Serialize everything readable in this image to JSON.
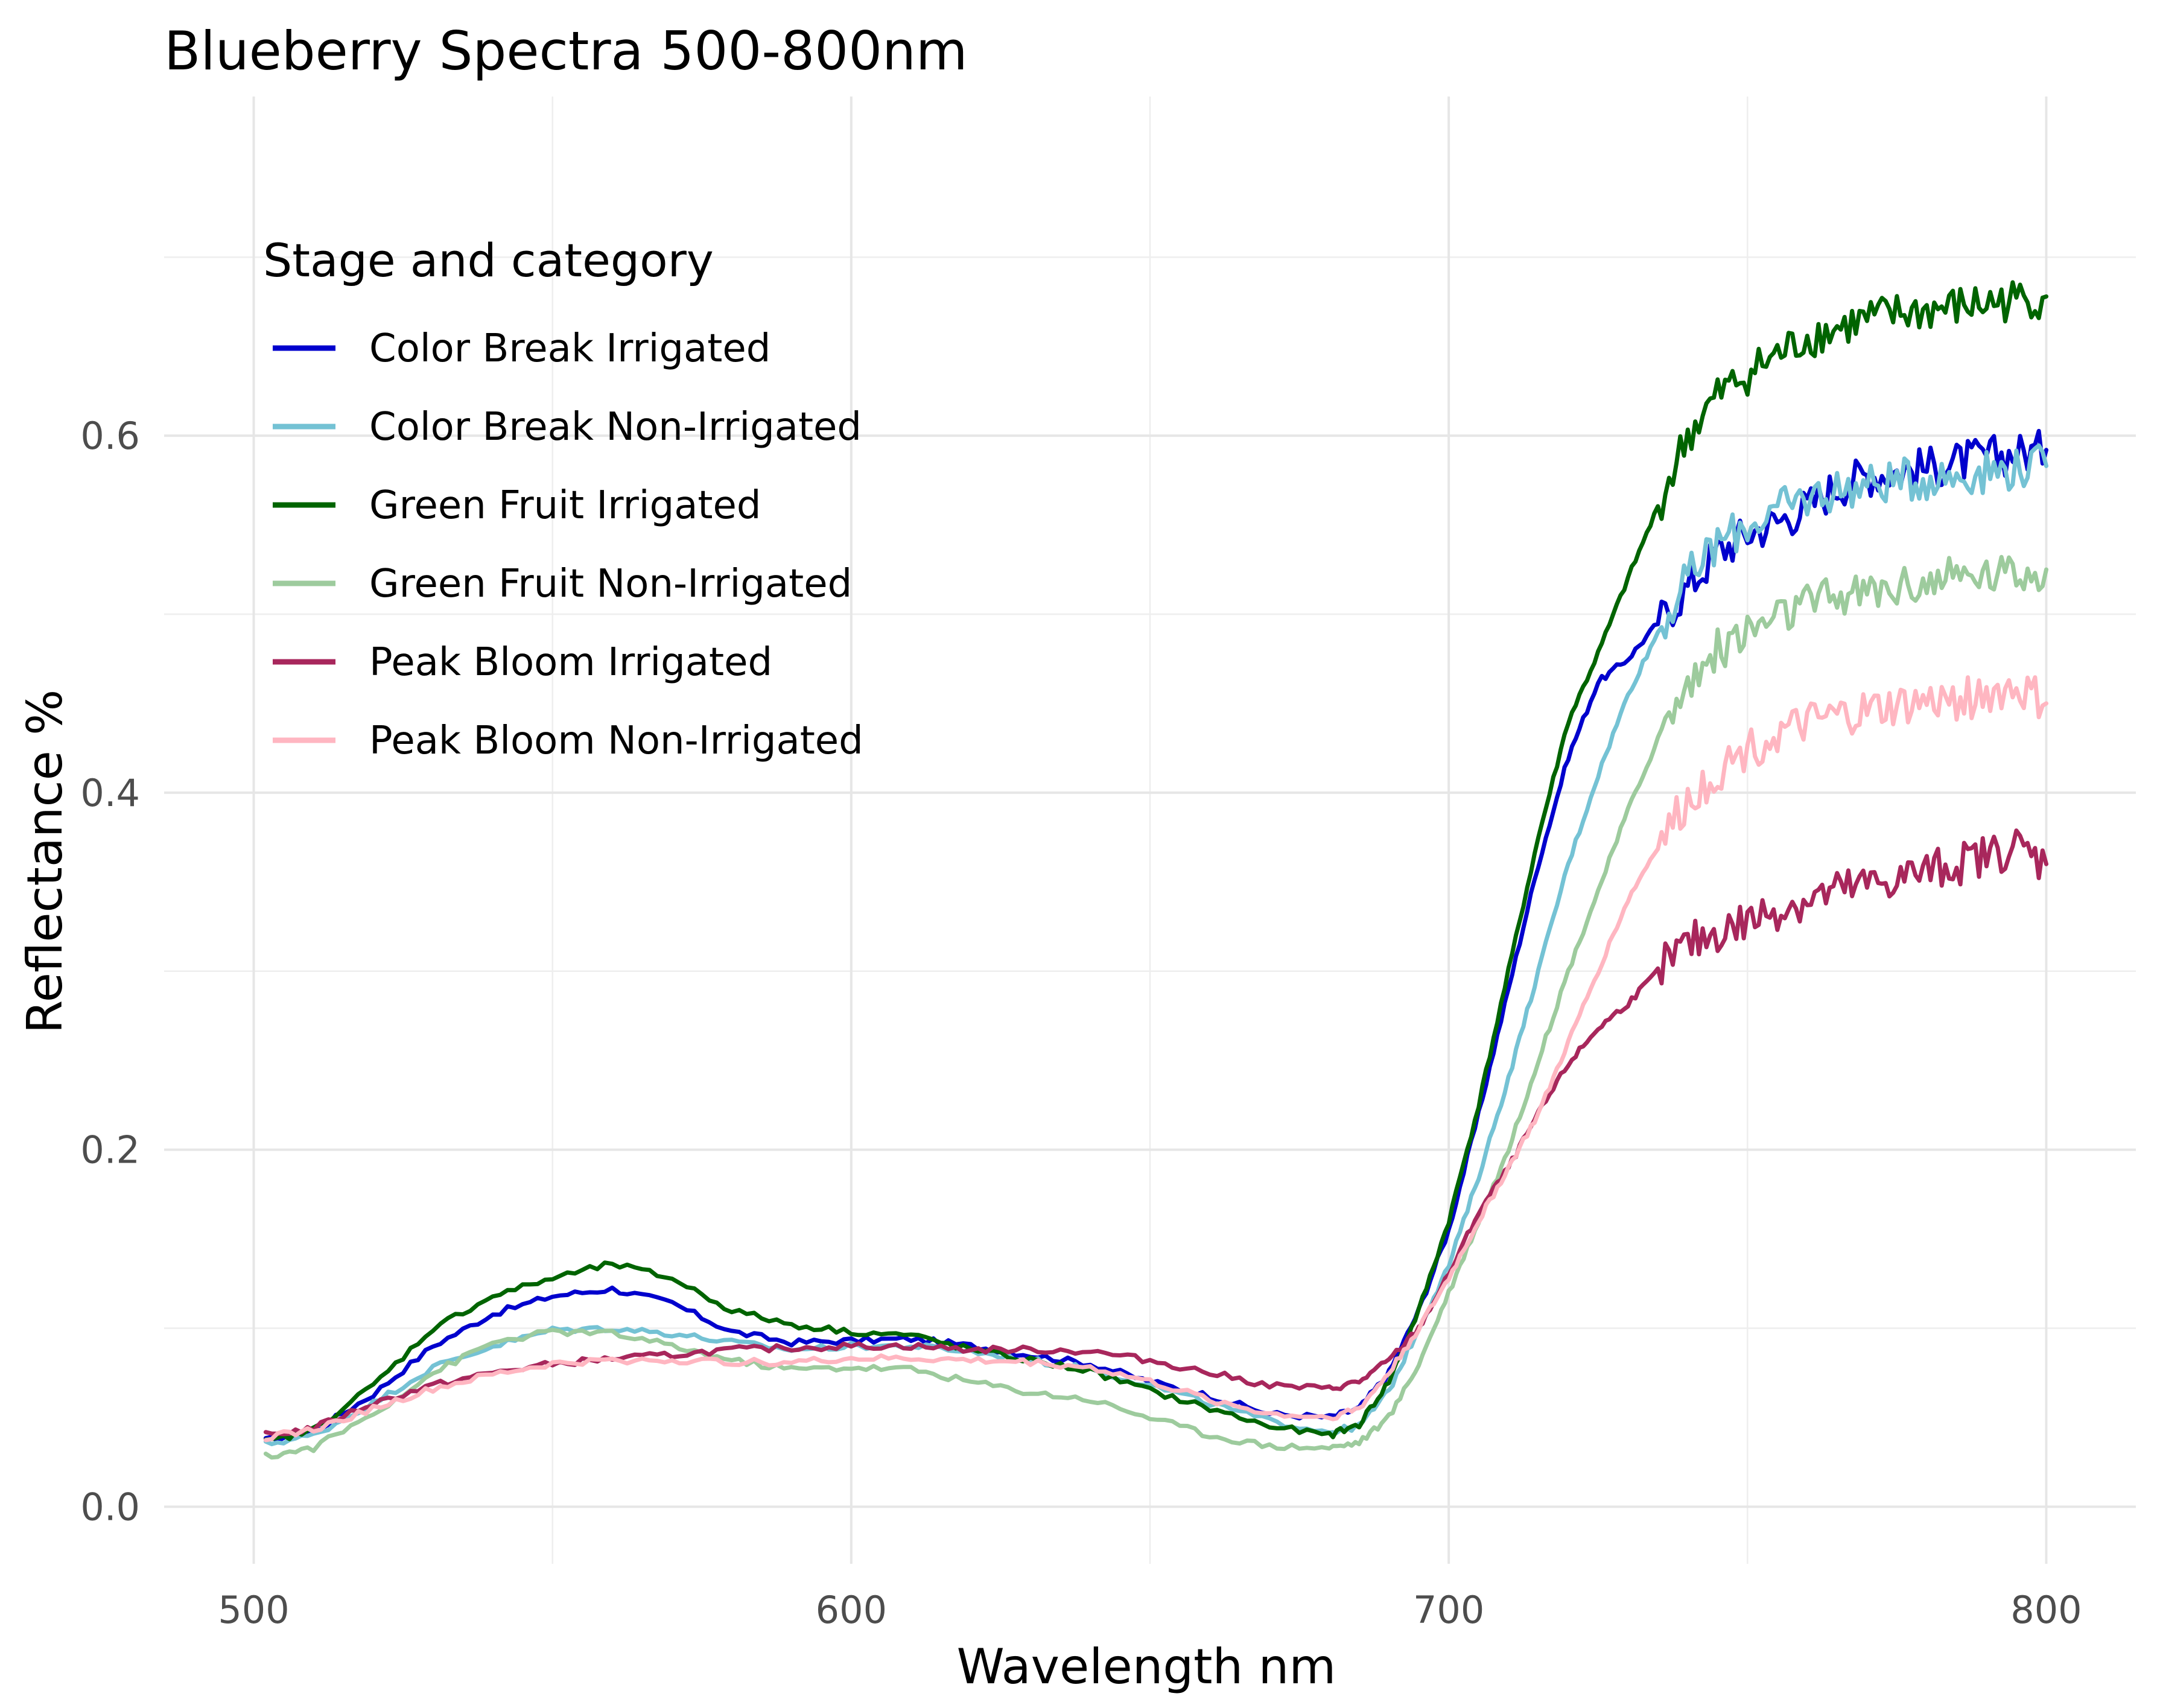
{
  "chart_data": {
    "type": "line",
    "title": "Blueberry Spectra 500-800nm",
    "xlabel": "Wavelength nm",
    "ylabel": "Reflectance %",
    "xlim": [
      485,
      815
    ],
    "ylim": [
      -0.032,
      0.79
    ],
    "x_ticks": [
      500,
      600,
      700,
      800
    ],
    "x_tick_labels": [
      "500",
      "600",
      "700",
      "800"
    ],
    "y_ticks": [
      0.0,
      0.2,
      0.4,
      0.6
    ],
    "y_tick_labels": [
      "0.0",
      "0.2",
      "0.4",
      "0.6"
    ],
    "grid": true,
    "legend": {
      "title": "Stage and category",
      "position": "top-left"
    },
    "series": [
      {
        "name": "Color Break Irrigated",
        "color": "#0000CD",
        "points": [
          [
            502,
            0.037
          ],
          [
            510,
            0.042
          ],
          [
            520,
            0.063
          ],
          [
            530,
            0.09
          ],
          [
            540,
            0.108
          ],
          [
            550,
            0.118
          ],
          [
            560,
            0.122
          ],
          [
            570,
            0.114
          ],
          [
            580,
            0.098
          ],
          [
            590,
            0.092
          ],
          [
            600,
            0.093
          ],
          [
            610,
            0.094
          ],
          [
            620,
            0.09
          ],
          [
            630,
            0.085
          ],
          [
            640,
            0.08
          ],
          [
            650,
            0.07
          ],
          [
            660,
            0.062
          ],
          [
            670,
            0.052
          ],
          [
            680,
            0.05
          ],
          [
            685,
            0.055
          ],
          [
            690,
            0.075
          ],
          [
            695,
            0.11
          ],
          [
            700,
            0.155
          ],
          [
            705,
            0.22
          ],
          [
            710,
            0.29
          ],
          [
            715,
            0.36
          ],
          [
            720,
            0.42
          ],
          [
            725,
            0.462
          ],
          [
            730,
            0.475
          ],
          [
            735,
            0.495
          ],
          [
            740,
            0.515
          ],
          [
            745,
            0.535
          ],
          [
            750,
            0.545
          ],
          [
            755,
            0.552
          ],
          [
            760,
            0.56
          ],
          [
            765,
            0.572
          ],
          [
            770,
            0.578
          ],
          [
            775,
            0.58
          ],
          [
            780,
            0.582
          ],
          [
            785,
            0.585
          ],
          [
            790,
            0.588
          ],
          [
            795,
            0.59
          ],
          [
            800,
            0.592
          ]
        ]
      },
      {
        "name": "Color Break Non-Irrigated",
        "color": "#74C2D4",
        "points": [
          [
            502,
            0.035
          ],
          [
            510,
            0.04
          ],
          [
            520,
            0.058
          ],
          [
            530,
            0.078
          ],
          [
            540,
            0.09
          ],
          [
            550,
            0.099
          ],
          [
            560,
            0.1
          ],
          [
            570,
            0.097
          ],
          [
            580,
            0.092
          ],
          [
            590,
            0.088
          ],
          [
            600,
            0.09
          ],
          [
            610,
            0.09
          ],
          [
            620,
            0.087
          ],
          [
            630,
            0.082
          ],
          [
            640,
            0.077
          ],
          [
            650,
            0.068
          ],
          [
            660,
            0.058
          ],
          [
            670,
            0.048
          ],
          [
            680,
            0.042
          ],
          [
            685,
            0.045
          ],
          [
            690,
            0.065
          ],
          [
            695,
            0.1
          ],
          [
            700,
            0.135
          ],
          [
            705,
            0.185
          ],
          [
            710,
            0.24
          ],
          [
            715,
            0.3
          ],
          [
            720,
            0.36
          ],
          [
            725,
            0.41
          ],
          [
            730,
            0.455
          ],
          [
            735,
            0.49
          ],
          [
            740,
            0.52
          ],
          [
            745,
            0.54
          ],
          [
            750,
            0.55
          ],
          [
            755,
            0.558
          ],
          [
            760,
            0.565
          ],
          [
            765,
            0.57
          ],
          [
            770,
            0.572
          ],
          [
            775,
            0.575
          ],
          [
            780,
            0.576
          ],
          [
            785,
            0.578
          ],
          [
            790,
            0.58
          ],
          [
            795,
            0.582
          ],
          [
            800,
            0.583
          ]
        ]
      },
      {
        "name": "Green Fruit Irrigated",
        "color": "#006400",
        "points": [
          [
            502,
            0.036
          ],
          [
            510,
            0.043
          ],
          [
            520,
            0.068
          ],
          [
            530,
            0.1
          ],
          [
            540,
            0.118
          ],
          [
            550,
            0.128
          ],
          [
            560,
            0.136
          ],
          [
            570,
            0.128
          ],
          [
            580,
            0.11
          ],
          [
            590,
            0.102
          ],
          [
            600,
            0.098
          ],
          [
            610,
            0.096
          ],
          [
            620,
            0.088
          ],
          [
            630,
            0.082
          ],
          [
            640,
            0.076
          ],
          [
            650,
            0.065
          ],
          [
            660,
            0.055
          ],
          [
            670,
            0.045
          ],
          [
            680,
            0.04
          ],
          [
            685,
            0.046
          ],
          [
            690,
            0.07
          ],
          [
            695,
            0.11
          ],
          [
            700,
            0.16
          ],
          [
            705,
            0.225
          ],
          [
            710,
            0.3
          ],
          [
            715,
            0.375
          ],
          [
            720,
            0.44
          ],
          [
            725,
            0.478
          ],
          [
            730,
            0.52
          ],
          [
            735,
            0.56
          ],
          [
            740,
            0.6
          ],
          [
            745,
            0.622
          ],
          [
            750,
            0.635
          ],
          [
            755,
            0.645
          ],
          [
            760,
            0.655
          ],
          [
            765,
            0.66
          ],
          [
            770,
            0.665
          ],
          [
            775,
            0.668
          ],
          [
            780,
            0.67
          ],
          [
            785,
            0.672
          ],
          [
            790,
            0.674
          ],
          [
            795,
            0.676
          ],
          [
            800,
            0.678
          ]
        ]
      },
      {
        "name": "Green Fruit Non-Irrigated",
        "color": "#9DCB9D",
        "points": [
          [
            502,
            0.028
          ],
          [
            510,
            0.033
          ],
          [
            520,
            0.052
          ],
          [
            530,
            0.075
          ],
          [
            540,
            0.092
          ],
          [
            550,
            0.098
          ],
          [
            560,
            0.097
          ],
          [
            570,
            0.09
          ],
          [
            580,
            0.082
          ],
          [
            590,
            0.077
          ],
          [
            600,
            0.078
          ],
          [
            610,
            0.077
          ],
          [
            620,
            0.07
          ],
          [
            630,
            0.064
          ],
          [
            640,
            0.06
          ],
          [
            650,
            0.05
          ],
          [
            660,
            0.04
          ],
          [
            670,
            0.034
          ],
          [
            680,
            0.033
          ],
          [
            685,
            0.036
          ],
          [
            690,
            0.05
          ],
          [
            695,
            0.08
          ],
          [
            700,
            0.12
          ],
          [
            705,
            0.16
          ],
          [
            710,
            0.2
          ],
          [
            715,
            0.25
          ],
          [
            720,
            0.3
          ],
          [
            725,
            0.345
          ],
          [
            730,
            0.39
          ],
          [
            735,
            0.43
          ],
          [
            740,
            0.46
          ],
          [
            745,
            0.48
          ],
          [
            750,
            0.49
          ],
          [
            755,
            0.498
          ],
          [
            760,
            0.505
          ],
          [
            765,
            0.51
          ],
          [
            770,
            0.512
          ],
          [
            775,
            0.515
          ],
          [
            780,
            0.518
          ],
          [
            785,
            0.52
          ],
          [
            790,
            0.522
          ],
          [
            795,
            0.523
          ],
          [
            800,
            0.525
          ]
        ]
      },
      {
        "name": "Peak Bloom Irrigated",
        "color": "#A8275C",
        "points": [
          [
            502,
            0.04
          ],
          [
            510,
            0.044
          ],
          [
            520,
            0.058
          ],
          [
            530,
            0.068
          ],
          [
            540,
            0.075
          ],
          [
            550,
            0.08
          ],
          [
            560,
            0.083
          ],
          [
            570,
            0.085
          ],
          [
            580,
            0.088
          ],
          [
            590,
            0.089
          ],
          [
            600,
            0.09
          ],
          [
            610,
            0.09
          ],
          [
            620,
            0.088
          ],
          [
            630,
            0.088
          ],
          [
            640,
            0.087
          ],
          [
            650,
            0.082
          ],
          [
            660,
            0.075
          ],
          [
            670,
            0.068
          ],
          [
            680,
            0.066
          ],
          [
            685,
            0.07
          ],
          [
            690,
            0.082
          ],
          [
            695,
            0.1
          ],
          [
            700,
            0.13
          ],
          [
            705,
            0.165
          ],
          [
            710,
            0.19
          ],
          [
            715,
            0.22
          ],
          [
            720,
            0.248
          ],
          [
            725,
            0.268
          ],
          [
            730,
            0.282
          ],
          [
            735,
            0.3
          ],
          [
            740,
            0.315
          ],
          [
            745,
            0.322
          ],
          [
            750,
            0.328
          ],
          [
            755,
            0.335
          ],
          [
            760,
            0.34
          ],
          [
            765,
            0.345
          ],
          [
            770,
            0.348
          ],
          [
            775,
            0.352
          ],
          [
            780,
            0.356
          ],
          [
            785,
            0.36
          ],
          [
            790,
            0.365
          ],
          [
            795,
            0.37
          ],
          [
            800,
            0.36
          ]
        ]
      },
      {
        "name": "Peak Bloom Non-Irrigated",
        "color": "#FFB6C1",
        "points": [
          [
            502,
            0.039
          ],
          [
            510,
            0.043
          ],
          [
            520,
            0.055
          ],
          [
            530,
            0.066
          ],
          [
            540,
            0.074
          ],
          [
            550,
            0.08
          ],
          [
            560,
            0.082
          ],
          [
            570,
            0.082
          ],
          [
            580,
            0.081
          ],
          [
            590,
            0.081
          ],
          [
            600,
            0.083
          ],
          [
            610,
            0.083
          ],
          [
            620,
            0.082
          ],
          [
            630,
            0.081
          ],
          [
            640,
            0.078
          ],
          [
            650,
            0.07
          ],
          [
            660,
            0.06
          ],
          [
            670,
            0.052
          ],
          [
            680,
            0.05
          ],
          [
            685,
            0.055
          ],
          [
            690,
            0.075
          ],
          [
            695,
            0.1
          ],
          [
            700,
            0.128
          ],
          [
            705,
            0.16
          ],
          [
            710,
            0.19
          ],
          [
            715,
            0.22
          ],
          [
            720,
            0.26
          ],
          [
            725,
            0.3
          ],
          [
            730,
            0.34
          ],
          [
            735,
            0.37
          ],
          [
            740,
            0.395
          ],
          [
            745,
            0.412
          ],
          [
            750,
            0.425
          ],
          [
            755,
            0.432
          ],
          [
            760,
            0.438
          ],
          [
            765,
            0.442
          ],
          [
            770,
            0.445
          ],
          [
            775,
            0.448
          ],
          [
            780,
            0.45
          ],
          [
            785,
            0.452
          ],
          [
            790,
            0.455
          ],
          [
            795,
            0.458
          ],
          [
            800,
            0.45
          ]
        ]
      }
    ]
  }
}
